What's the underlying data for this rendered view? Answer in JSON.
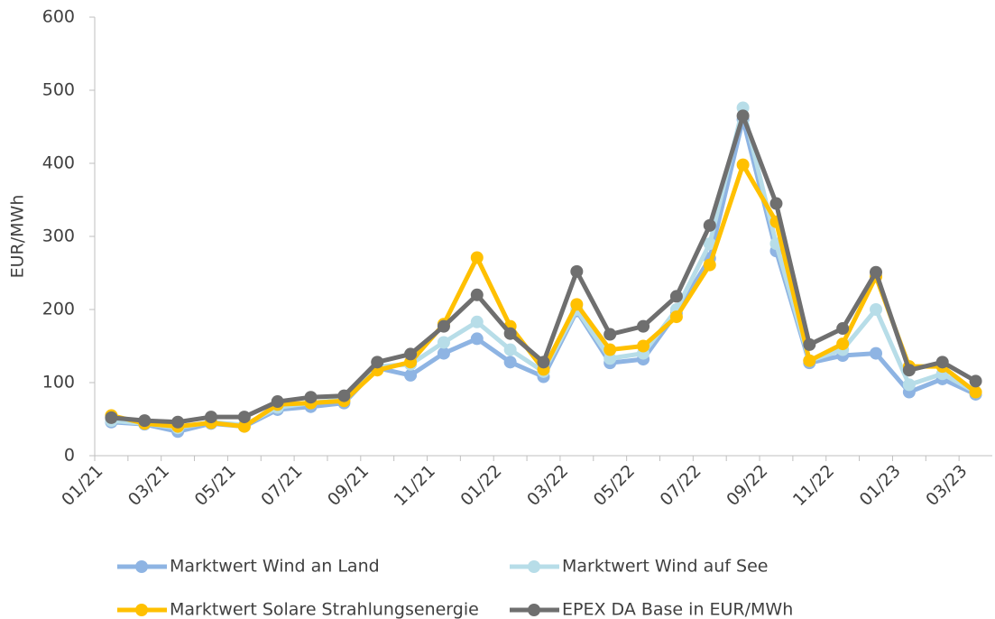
{
  "chart_data": {
    "type": "line",
    "y_label": "EUR/MWh",
    "categories": [
      "01/21",
      null,
      "03/21",
      null,
      "05/21",
      null,
      "07/21",
      null,
      "09/21",
      null,
      "11/21",
      null,
      "01/22",
      null,
      "03/22",
      null,
      "05/22",
      null,
      "07/22",
      null,
      "09/22",
      null,
      "11/22",
      null,
      "01/23",
      null,
      "03/23"
    ],
    "series": [
      {
        "name": "Marktwert Wind an Land",
        "color": "#8eb4e3",
        "values": [
          46,
          43,
          33,
          44,
          40,
          63,
          67,
          72,
          120,
          110,
          140,
          160,
          128,
          108,
          198,
          127,
          132,
          195,
          270,
          460,
          280,
          127,
          137,
          140,
          87,
          105,
          84
        ]
      },
      {
        "name": "Marktwert Wind auf See",
        "color": "#b7dde8",
        "values": [
          48,
          44,
          38,
          46,
          42,
          66,
          72,
          77,
          122,
          125,
          155,
          183,
          145,
          115,
          200,
          133,
          140,
          200,
          290,
          476,
          290,
          130,
          145,
          200,
          97,
          112,
          87
        ]
      },
      {
        "name": "Marktwert Solare Strahlungsenergie",
        "color": "#ffc000",
        "values": [
          55,
          44,
          40,
          45,
          40,
          70,
          72,
          75,
          117,
          128,
          180,
          271,
          177,
          118,
          207,
          145,
          150,
          190,
          261,
          398,
          320,
          130,
          153,
          245,
          122,
          122,
          87
        ]
      },
      {
        "name": "EPEX DA Base in EUR/MWh",
        "color": "#6f6f6f",
        "values": [
          52,
          48,
          46,
          53,
          53,
          74,
          80,
          82,
          128,
          139,
          177,
          220,
          167,
          128,
          252,
          166,
          177,
          218,
          315,
          465,
          345,
          152,
          174,
          251,
          117,
          128,
          102
        ]
      }
    ],
    "ylim": [
      0,
      600
    ],
    "yticks": [
      0,
      100,
      200,
      300,
      400,
      500,
      600
    ]
  }
}
